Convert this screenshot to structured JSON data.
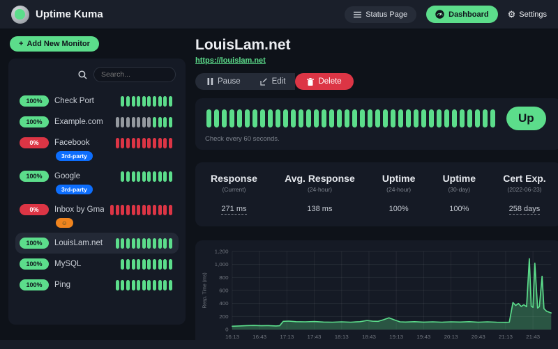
{
  "navbar": {
    "brand": "Uptime Kuma",
    "status_page_label": "Status Page",
    "dashboard_label": "Dashboard",
    "settings_label": "Settings"
  },
  "sidebar": {
    "add_monitor_label": "Add New Monitor",
    "search_placeholder": "Search...",
    "monitors": [
      {
        "name": "Check Port",
        "uptime": "100%",
        "status": "up",
        "selected": false,
        "beats": "uuuuuuuuuu",
        "tags": []
      },
      {
        "name": "Example.com",
        "uptime": "100%",
        "status": "up",
        "selected": false,
        "beats": "eeeeeeeuuuu",
        "tags": []
      },
      {
        "name": "Facebook",
        "uptime": "0%",
        "status": "down",
        "selected": false,
        "beats": "ddddddddddd",
        "tags": [
          {
            "label": "3rd-party",
            "color": "#0D6EFD",
            "text_color": "#ffffff"
          }
        ]
      },
      {
        "name": "Google",
        "uptime": "100%",
        "status": "up",
        "selected": false,
        "beats": "uuuuuuuuuu",
        "tags": [
          {
            "label": "3rd-party",
            "color": "#0D6EFD",
            "text_color": "#ffffff"
          }
        ]
      },
      {
        "name": "Inbox by Gmail",
        "uptime": "0%",
        "status": "down",
        "selected": false,
        "beats": "dddddddddddd",
        "tags": [
          {
            "label": "☺",
            "color": "#F0841E",
            "text_color": "#1c3a28"
          }
        ]
      },
      {
        "name": "LouisLam.net",
        "uptime": "100%",
        "status": "up",
        "selected": true,
        "beats": "uuuuuuuuuuu",
        "tags": []
      },
      {
        "name": "MySQL",
        "uptime": "100%",
        "status": "up",
        "selected": false,
        "beats": "uuuuuuuuuu",
        "tags": []
      },
      {
        "name": "Ping",
        "uptime": "100%",
        "status": "up",
        "selected": false,
        "beats": "uuuuuuuuuuu",
        "tags": []
      }
    ]
  },
  "main": {
    "title": "LouisLam.net",
    "url": "https://louislam.net",
    "actions": {
      "pause": "Pause",
      "edit": "Edit",
      "delete": "Delete"
    },
    "heartbeat": {
      "beats": "uuuuuuuuuuuuuuuuuuuuuuuuuuuuuuuuuuuuuu",
      "status_label": "Up",
      "check_interval": "Check every 60 seconds."
    },
    "stats": [
      {
        "label": "Response",
        "sub": "(Current)",
        "value": "271 ms",
        "underline": true
      },
      {
        "label": "Avg. Response",
        "sub": "(24-hour)",
        "value": "138 ms",
        "underline": false
      },
      {
        "label": "Uptime",
        "sub": "(24-hour)",
        "value": "100%",
        "underline": false
      },
      {
        "label": "Uptime",
        "sub": "(30-day)",
        "value": "100%",
        "underline": false
      },
      {
        "label": "Cert Exp.",
        "sub": "(2022-06-23)",
        "value": "258 days",
        "underline": true
      }
    ]
  },
  "chart_data": {
    "type": "area",
    "title": "",
    "xlabel": "",
    "ylabel": "Resp. Time (ms)",
    "ylim": [
      0,
      1200
    ],
    "xlim": [
      0,
      350
    ],
    "grid": true,
    "yticks": [
      0,
      200,
      400,
      600,
      800,
      1000,
      1200
    ],
    "ytick_labels": [
      "0",
      "200",
      "400",
      "600",
      "800",
      "1,000",
      "1,200"
    ],
    "xtick_minutes": [
      0,
      30,
      60,
      90,
      120,
      150,
      180,
      210,
      240,
      270,
      300,
      330
    ],
    "xtick_labels": [
      "16:13",
      "16:43",
      "17:13",
      "17:43",
      "18:13",
      "18:43",
      "19:13",
      "19:43",
      "20:13",
      "20:43",
      "21:13",
      "21:43"
    ],
    "series": [
      {
        "name": "Response Time (ms)",
        "x": [
          0,
          8,
          16,
          24,
          32,
          40,
          48,
          52,
          56,
          62,
          70,
          80,
          90,
          100,
          110,
          120,
          130,
          140,
          148,
          154,
          160,
          166,
          172,
          178,
          184,
          190,
          200,
          210,
          220,
          230,
          240,
          250,
          260,
          270,
          280,
          290,
          300,
          304,
          308,
          311,
          314,
          317,
          320,
          323,
          326,
          328,
          330,
          332,
          335,
          337,
          340,
          342,
          345,
          348,
          350
        ],
        "y": [
          50,
          55,
          60,
          62,
          58,
          60,
          55,
          58,
          125,
          130,
          120,
          118,
          122,
          115,
          112,
          118,
          112,
          120,
          138,
          128,
          125,
          150,
          180,
          148,
          118,
          115,
          120,
          114,
          118,
          112,
          118,
          115,
          120,
          113,
          118,
          112,
          110,
          112,
          415,
          370,
          400,
          355,
          380,
          350,
          1090,
          360,
          340,
          1020,
          330,
          350,
          820,
          320,
          280,
          265,
          255
        ]
      }
    ],
    "line_color": "#5CDD8B",
    "fill_color": "rgba(92,221,139,0.30)"
  },
  "colors": {
    "accent_green": "#5CDD8B",
    "danger_red": "#DC3545",
    "tag_blue": "#0D6EFD",
    "tag_orange": "#F0841E",
    "empty_beat": "#94999F",
    "panel_bg": "#151a25",
    "navbar_bg": "#1a1f2a",
    "page_bg": "#0e1219"
  },
  "icons": {
    "logo": "uptime-kuma-circle",
    "status_page": "list-lines",
    "dashboard": "speedometer",
    "settings_glyph": "⚙",
    "add_glyph": "+",
    "search": "magnifier",
    "pause": "pause-bars",
    "edit": "pencil-square",
    "delete": "trash-can",
    "gmail_tag_glyph": "☺"
  }
}
